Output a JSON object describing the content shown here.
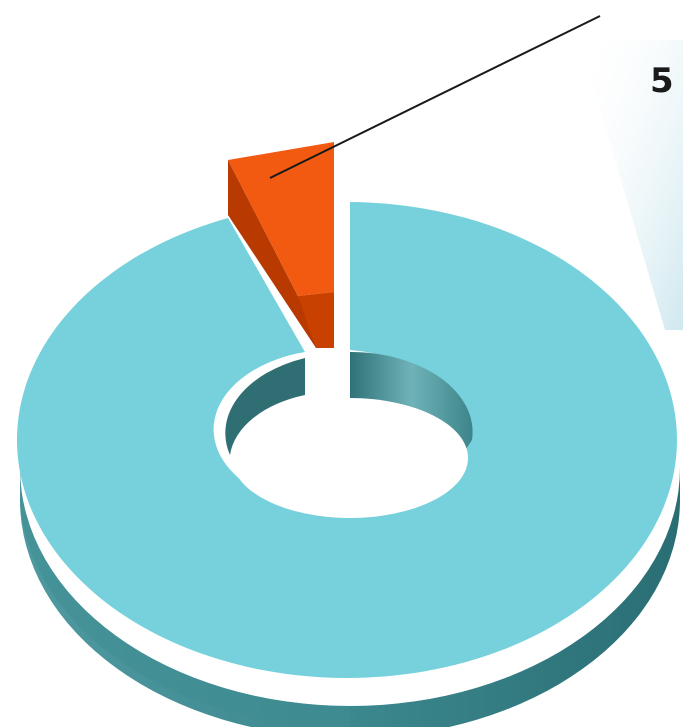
{
  "chart_data": {
    "type": "pie",
    "style": "3d-donut",
    "categories": [
      "",
      ""
    ],
    "values": [
      95,
      5
    ],
    "data_labels": [
      "",
      "5"
    ],
    "exploded": [
      false,
      true
    ],
    "colors": {
      "main_top": "#77d1dc",
      "main_side": "#2e7c82",
      "slice_top": "#f25a12",
      "slice_side": "#b83a00",
      "leader_line": "#1a1a1a",
      "background_band": "#cfe8ef"
    }
  }
}
